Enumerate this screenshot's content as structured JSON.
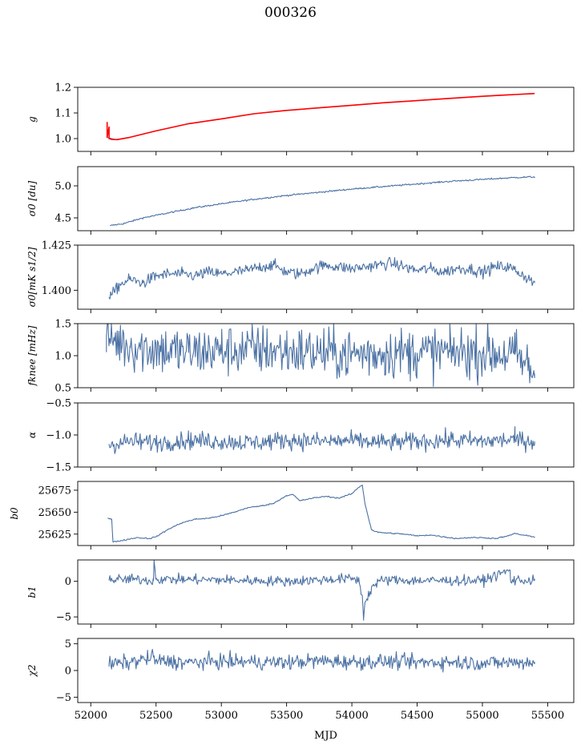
{
  "title": "000326",
  "xlabel": "MJD",
  "colors": {
    "series": "#4c72a4",
    "model": "#ff0000",
    "axis": "#000000"
  },
  "chart_data": [
    {
      "type": "line",
      "ylabel": "g",
      "xlim": [
        51900,
        55700
      ],
      "ylim": [
        0.95,
        1.2
      ],
      "yticks": [
        1.0,
        1.1,
        1.2
      ],
      "ytick_labels": [
        "1.0",
        "1.1",
        "1.2"
      ],
      "series": [
        {
          "x": [
            52120,
            52160,
            52200,
            52300,
            52500,
            52750,
            53000,
            53250,
            53500,
            53750,
            54000,
            54250,
            54500,
            54750,
            55000,
            55250,
            55400
          ],
          "y": [
            1.005,
            1.0,
            0.995,
            1.005,
            1.03,
            1.058,
            1.077,
            1.097,
            1.11,
            1.12,
            1.13,
            1.14,
            1.148,
            1.157,
            1.165,
            1.172,
            1.175
          ]
        },
        {
          "x": [
            52125,
            52125,
            52140,
            52140,
            52160,
            52200,
            52300,
            52500,
            52750,
            53000,
            53250,
            53500,
            53750,
            54000,
            54250,
            54500,
            54750,
            55000,
            55250,
            55400
          ],
          "y": [
            1.065,
            1.005,
            1.045,
            1.0,
            0.997,
            0.996,
            1.005,
            1.03,
            1.058,
            1.077,
            1.097,
            1.11,
            1.12,
            1.13,
            1.14,
            1.148,
            1.157,
            1.165,
            1.172,
            1.176
          ]
        }
      ]
    },
    {
      "type": "line",
      "ylabel": "σ0 [du]",
      "xlim": [
        51900,
        55700
      ],
      "ylim": [
        4.3,
        5.3
      ],
      "yticks": [
        4.5,
        5.0
      ],
      "ytick_labels": [
        "4.5",
        "5.0"
      ],
      "series": [
        {
          "x": [
            52150,
            52250,
            52400,
            52600,
            52800,
            53000,
            53250,
            53500,
            53750,
            54000,
            54250,
            54500,
            54750,
            55000,
            55250,
            55400
          ],
          "y": [
            4.38,
            4.41,
            4.5,
            4.58,
            4.66,
            4.72,
            4.79,
            4.85,
            4.9,
            4.95,
            4.99,
            5.03,
            5.07,
            5.1,
            5.13,
            5.14
          ]
        }
      ]
    },
    {
      "type": "line",
      "ylabel": "σ0[mK s1/2]",
      "xlim": [
        51900,
        55700
      ],
      "ylim": [
        1.3895,
        1.425
      ],
      "yticks": [
        1.4,
        1.425
      ],
      "ytick_labels": [
        "1.400",
        "1.425"
      ],
      "series": [
        {
          "x": [
            52140,
            52180,
            52220,
            52300,
            52400,
            52500,
            52600,
            52700,
            52800,
            52900,
            53000,
            53100,
            53200,
            53300,
            53400,
            53500,
            53600,
            53700,
            53800,
            53900,
            54000,
            54100,
            54200,
            54300,
            54400,
            54500,
            54600,
            54700,
            54800,
            54900,
            55000,
            55100,
            55200,
            55300,
            55400
          ],
          "y": [
            1.396,
            1.399,
            1.403,
            1.406,
            1.404,
            1.408,
            1.409,
            1.409,
            1.408,
            1.41,
            1.409,
            1.41,
            1.411,
            1.413,
            1.414,
            1.41,
            1.409,
            1.412,
            1.414,
            1.413,
            1.412,
            1.413,
            1.414,
            1.415,
            1.413,
            1.411,
            1.412,
            1.41,
            1.412,
            1.412,
            1.41,
            1.413,
            1.413,
            1.409,
            1.404
          ]
        }
      ]
    },
    {
      "type": "line",
      "ylabel": "fknee [mHz]",
      "xlim": [
        51900,
        55700
      ],
      "ylim": [
        0.5,
        1.5
      ],
      "yticks": [
        0.5,
        1.0,
        1.5
      ],
      "ytick_labels": [
        "0.5",
        "1.0",
        "1.5"
      ],
      "series": [
        {
          "x": [
            52120,
            52300,
            52500,
            52750,
            53000,
            53250,
            53500,
            53750,
            54000,
            54250,
            54500,
            54750,
            55000,
            55250,
            55400
          ],
          "y": [
            1.3,
            1.15,
            1.1,
            1.05,
            1.08,
            1.1,
            1.07,
            1.05,
            1.02,
            1.05,
            1.04,
            1.06,
            1.05,
            1.02,
            0.72
          ]
        }
      ]
    },
    {
      "type": "line",
      "ylabel": "α",
      "xlim": [
        51900,
        55700
      ],
      "ylim": [
        -1.5,
        -0.5
      ],
      "yticks": [
        -1.5,
        -1.0,
        -0.5
      ],
      "ytick_labels": [
        "−1.5",
        "−1.0",
        "−0.5"
      ],
      "series": [
        {
          "x": [
            52140,
            52300,
            52500,
            52750,
            53000,
            53250,
            53500,
            53750,
            54000,
            54250,
            54500,
            54750,
            55000,
            55250,
            55400
          ],
          "y": [
            -1.15,
            -1.1,
            -1.12,
            -1.08,
            -1.1,
            -1.12,
            -1.08,
            -1.1,
            -1.09,
            -1.12,
            -1.1,
            -1.08,
            -1.1,
            -1.07,
            -1.1
          ]
        }
      ]
    },
    {
      "type": "line",
      "ylabel": "b0",
      "xlim": [
        51900,
        55700
      ],
      "ylim": [
        25612,
        25685
      ],
      "yticks": [
        25625,
        25650,
        25675
      ],
      "ytick_labels": [
        "25625",
        "25650",
        "25675"
      ],
      "series": [
        {
          "x": [
            52130,
            52160,
            52170,
            52250,
            52350,
            52450,
            52500,
            52600,
            52700,
            52800,
            52900,
            53000,
            53100,
            53200,
            53300,
            53400,
            53500,
            53550,
            53600,
            53700,
            53800,
            53900,
            54000,
            54050,
            54080,
            54100,
            54150,
            54200,
            54300,
            54400,
            54500,
            54600,
            54700,
            54800,
            54900,
            55000,
            55100,
            55200,
            55250,
            55300,
            55400
          ],
          "y": [
            25643,
            25642,
            25616,
            25618,
            25621,
            25620,
            25622,
            25631,
            25638,
            25642,
            25643,
            25646,
            25650,
            25655,
            25657,
            25660,
            25669,
            25670,
            25663,
            25666,
            25668,
            25666,
            25671,
            25678,
            25681,
            25660,
            25630,
            25627,
            25626,
            25625,
            25623,
            25624,
            25622,
            25620,
            25621,
            25621,
            25620,
            25623,
            25626,
            25624,
            25622
          ]
        }
      ]
    },
    {
      "type": "line",
      "ylabel": "b1",
      "xlim": [
        51900,
        55700
      ],
      "ylim": [
        -6,
        3
      ],
      "yticks": [
        -5,
        0
      ],
      "ytick_labels": [
        "−5",
        "0"
      ],
      "series": [
        {
          "x": [
            52140,
            52300,
            52480,
            52485,
            52500,
            53000,
            53500,
            54000,
            54050,
            54080,
            54090,
            54100,
            54150,
            54200,
            54300,
            54500,
            55000,
            55210,
            55215,
            55400
          ],
          "y": [
            0.2,
            0.3,
            0.1,
            2.8,
            0.3,
            0.2,
            0.0,
            0.4,
            0.2,
            -2.0,
            -5.3,
            -3.0,
            -1.0,
            0.0,
            0.2,
            0.1,
            0.1,
            1.6,
            0.2,
            0.1
          ]
        }
      ]
    },
    {
      "type": "line",
      "ylabel": "χ2",
      "xlim": [
        51900,
        55700
      ],
      "ylim": [
        -6,
        6
      ],
      "yticks": [
        -5,
        0,
        5
      ],
      "ytick_labels": [
        "−5",
        "0",
        "5"
      ],
      "series": [
        {
          "x": [
            52140,
            52300,
            52480,
            52500,
            52750,
            53000,
            53250,
            53500,
            53750,
            54000,
            54250,
            54500,
            54750,
            55000,
            55250,
            55400
          ],
          "y": [
            1.2,
            1.5,
            2.5,
            1.8,
            1.5,
            1.7,
            1.6,
            1.5,
            1.8,
            1.6,
            1.7,
            1.5,
            1.6,
            1.4,
            1.5,
            1.6
          ]
        }
      ]
    }
  ],
  "xticks": [
    52000,
    52500,
    53000,
    53500,
    54000,
    54500,
    55000,
    55500
  ],
  "xtick_labels": [
    "52000",
    "52500",
    "53000",
    "53500",
    "54000",
    "54500",
    "55000",
    "55500"
  ]
}
